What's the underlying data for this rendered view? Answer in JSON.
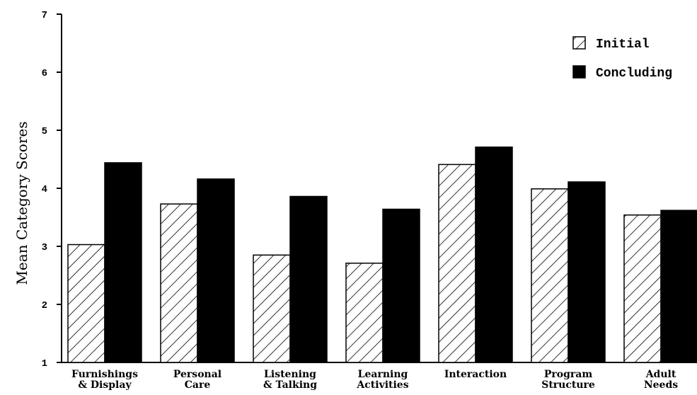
{
  "chart_data": {
    "type": "bar",
    "title": "",
    "xlabel": "",
    "ylabel": "Mean Category Scores",
    "ylim": [
      1,
      7
    ],
    "yticks": [
      "1",
      "2",
      "3",
      "4",
      "5",
      "6",
      "7"
    ],
    "categories": [
      [
        "Furnishings",
        "& Display"
      ],
      [
        "Personal",
        "Care"
      ],
      [
        "Listening",
        "& Talking"
      ],
      [
        "Learning",
        "Activities"
      ],
      [
        "Interaction"
      ],
      [
        "Program",
        "Structure"
      ],
      [
        "Adult",
        "Needs"
      ]
    ],
    "series": [
      {
        "name": "Initial",
        "pattern": "hatch",
        "color": "#000000",
        "values": [
          3.03,
          3.73,
          2.85,
          2.71,
          4.41,
          3.99,
          3.54
        ]
      },
      {
        "name": "Concluding",
        "pattern": "solid",
        "color": "#000000",
        "values": [
          4.44,
          4.16,
          3.86,
          3.64,
          4.71,
          4.11,
          3.62
        ]
      }
    ],
    "legend_position": "top-right",
    "grid": false
  }
}
